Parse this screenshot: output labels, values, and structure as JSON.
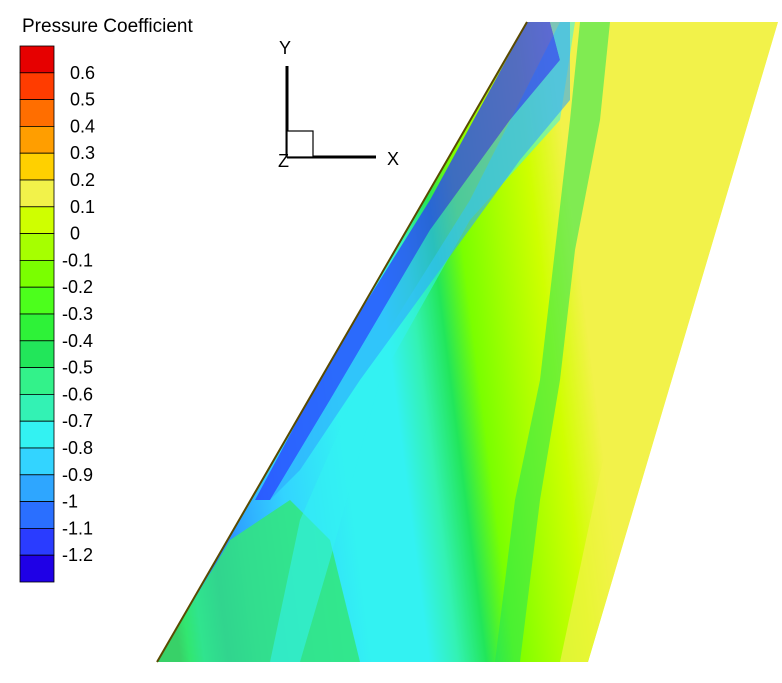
{
  "chart_data": {
    "type": "contour",
    "title": "",
    "legend": {
      "title": "Pressure Coefficient",
      "placement": "top-left",
      "levels": [
        "0.6",
        "0.5",
        "0.4",
        "0.3",
        "0.2",
        "0.1",
        "0",
        "-0.1",
        "-0.2",
        "-0.3",
        "-0.4",
        "-0.5",
        "-0.6",
        "-0.7",
        "-0.8",
        "-0.9",
        "-1",
        "-1.1",
        "-1.2"
      ],
      "colors": [
        "#e60000",
        "#ff3c00",
        "#ff6e00",
        "#ff9e00",
        "#ffd000",
        "#f2f24a",
        "#cfff00",
        "#a6ff00",
        "#7aff00",
        "#4cff1c",
        "#2ef238",
        "#22e65a",
        "#33f28a",
        "#33f2b4",
        "#33f2f2",
        "#33d4ff",
        "#2ea6ff",
        "#2a6fff",
        "#2a3cff",
        "#1f00e6"
      ]
    },
    "axes_triad": {
      "x_label": "X",
      "y_label": "Y",
      "z_label": "Z"
    },
    "value_range": [
      -1.2,
      0.6
    ]
  }
}
